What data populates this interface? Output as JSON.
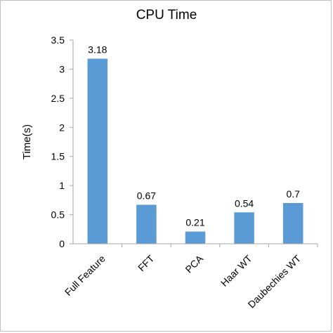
{
  "chart_data": {
    "type": "bar",
    "title": "CPU Time",
    "xlabel": "",
    "ylabel": "Time(s)",
    "categories": [
      "Full Feature",
      "FFT",
      "PCA",
      "Haar WT",
      "Daubechies WT"
    ],
    "values": [
      3.18,
      0.67,
      0.21,
      0.54,
      0.7
    ],
    "data_labels": [
      "3.18",
      "0.67",
      "0.21",
      "0.54",
      "0.7"
    ],
    "ylim": [
      0,
      3.5
    ],
    "yticks": [
      0,
      0.5,
      1,
      1.5,
      2,
      2.5,
      3,
      3.5
    ],
    "ytick_labels": [
      "0",
      "0.5",
      "1",
      "1.5",
      "2",
      "2.5",
      "3",
      "3.5"
    ],
    "grid": false,
    "legend": "none",
    "bar_color": "#5b9bd5",
    "axis_color": "#a6a6a6"
  }
}
